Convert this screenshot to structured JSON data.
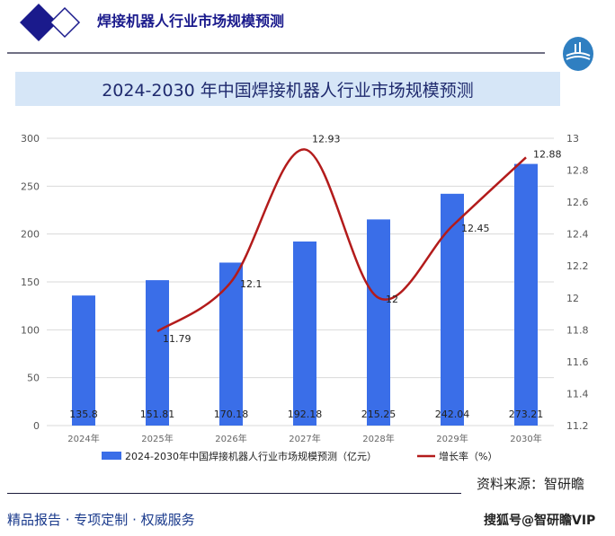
{
  "header": {
    "title": "焊接机器人行业市场规模预测"
  },
  "chart_title": "2024-2030 年中国焊接机器人行业市场规模预测",
  "source": "资料来源：智研瞻",
  "footer": {
    "left": "精品报告 ·  专项定制 · 权威服务",
    "right": "搜狐号@智研瞻VIP"
  },
  "colors": {
    "bar": "#3a6ee8",
    "line": "#b31b1b",
    "brand": "#1a1a8c",
    "band": "#d6e6f7"
  },
  "chart_data": {
    "type": "bar+line",
    "categories": [
      "2024年",
      "2025年",
      "2026年",
      "2027年",
      "2028年",
      "2029年",
      "2030年"
    ],
    "series": [
      {
        "name": "2024-2030年中国焊接机器人行业市场规模预测（亿元）",
        "type": "bar",
        "axis": "left",
        "values": [
          135.8,
          151.81,
          170.18,
          192.18,
          215.25,
          242.04,
          273.21
        ],
        "labels": [
          "135.8",
          "151.81",
          "170.18",
          "192.18",
          "215.25",
          "242.04",
          "273.21"
        ]
      },
      {
        "name": "增长率（%）",
        "type": "line",
        "axis": "right",
        "values": [
          null,
          11.79,
          12.1,
          12.93,
          12,
          12.45,
          12.88
        ],
        "labels": [
          "",
          "11.79",
          "12.1",
          "12.93",
          "12",
          "12.45",
          "12.88"
        ]
      }
    ],
    "left_axis": {
      "min": 0,
      "max": 300,
      "ticks": [
        "0",
        "50",
        "100",
        "150",
        "200",
        "250",
        "300"
      ]
    },
    "right_axis": {
      "min": 11.2,
      "max": 13,
      "ticks": [
        "11.2",
        "11.4",
        "11.6",
        "11.8",
        "12",
        "12.2",
        "12.4",
        "12.6",
        "12.8",
        "13"
      ]
    },
    "grid": true,
    "legend": "bottom"
  }
}
